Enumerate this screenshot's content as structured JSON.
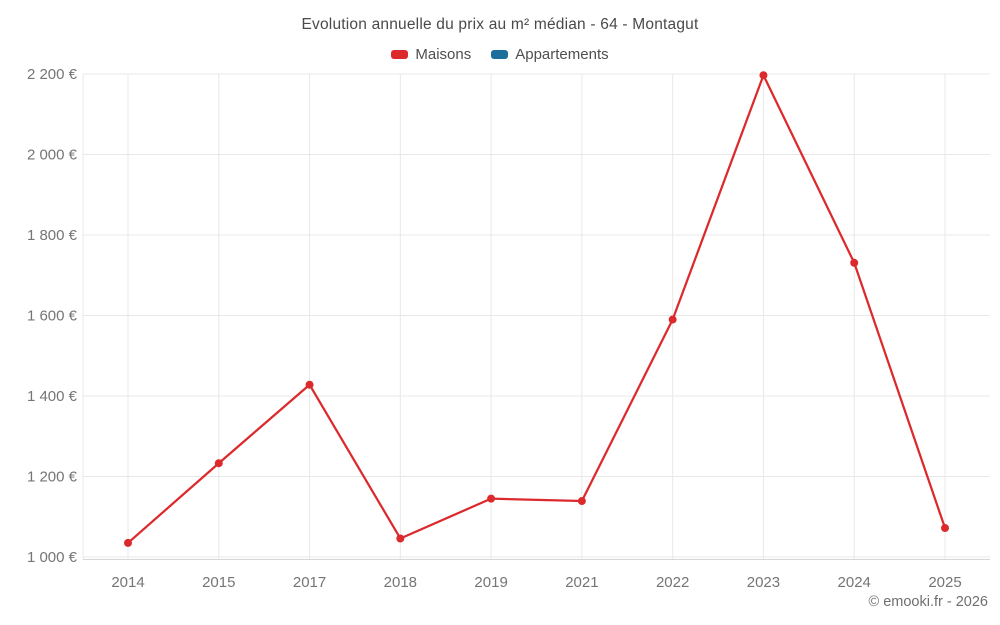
{
  "page": {
    "credit": "© emooki.fr - 2026"
  },
  "legend": {
    "items": [
      {
        "label": "Maisons",
        "color": "#dc2a2c"
      },
      {
        "label": "Appartements",
        "color": "#1c6e9c"
      }
    ]
  },
  "chart_data": {
    "type": "line",
    "title": "Evolution annuelle du prix au m² médian - 64 - Montagut",
    "categories": [
      "2014",
      "2015",
      "2017",
      "2018",
      "2019",
      "2021",
      "2022",
      "2023",
      "2024",
      "2025"
    ],
    "series": [
      {
        "name": "Maisons",
        "color": "#dc2a2c",
        "values": [
          1035,
          1233,
          1428,
          1046,
          1145,
          1139,
          1590,
          2197,
          1731,
          1072
        ]
      },
      {
        "name": "Appartements",
        "color": "#1c6e9c",
        "values": []
      }
    ],
    "ylabel": "",
    "xlabel": "",
    "ylim": [
      1000,
      2200
    ],
    "yticks": [
      {
        "value": 1000,
        "label": "1 000 €"
      },
      {
        "value": 1200,
        "label": "1 200 €"
      },
      {
        "value": 1400,
        "label": "1 400 €"
      },
      {
        "value": 1600,
        "label": "1 600 €"
      },
      {
        "value": 1800,
        "label": "1 800 €"
      },
      {
        "value": 2000,
        "label": "2 000 €"
      },
      {
        "value": 2200,
        "label": "2 200 €"
      }
    ],
    "grid": true,
    "legend_position": "top",
    "colors": {
      "grid_line": "#e8e8e8",
      "axis_line": "#d6d6d6",
      "tick_label": "#757575",
      "title_text": "#4a4a4a"
    }
  }
}
